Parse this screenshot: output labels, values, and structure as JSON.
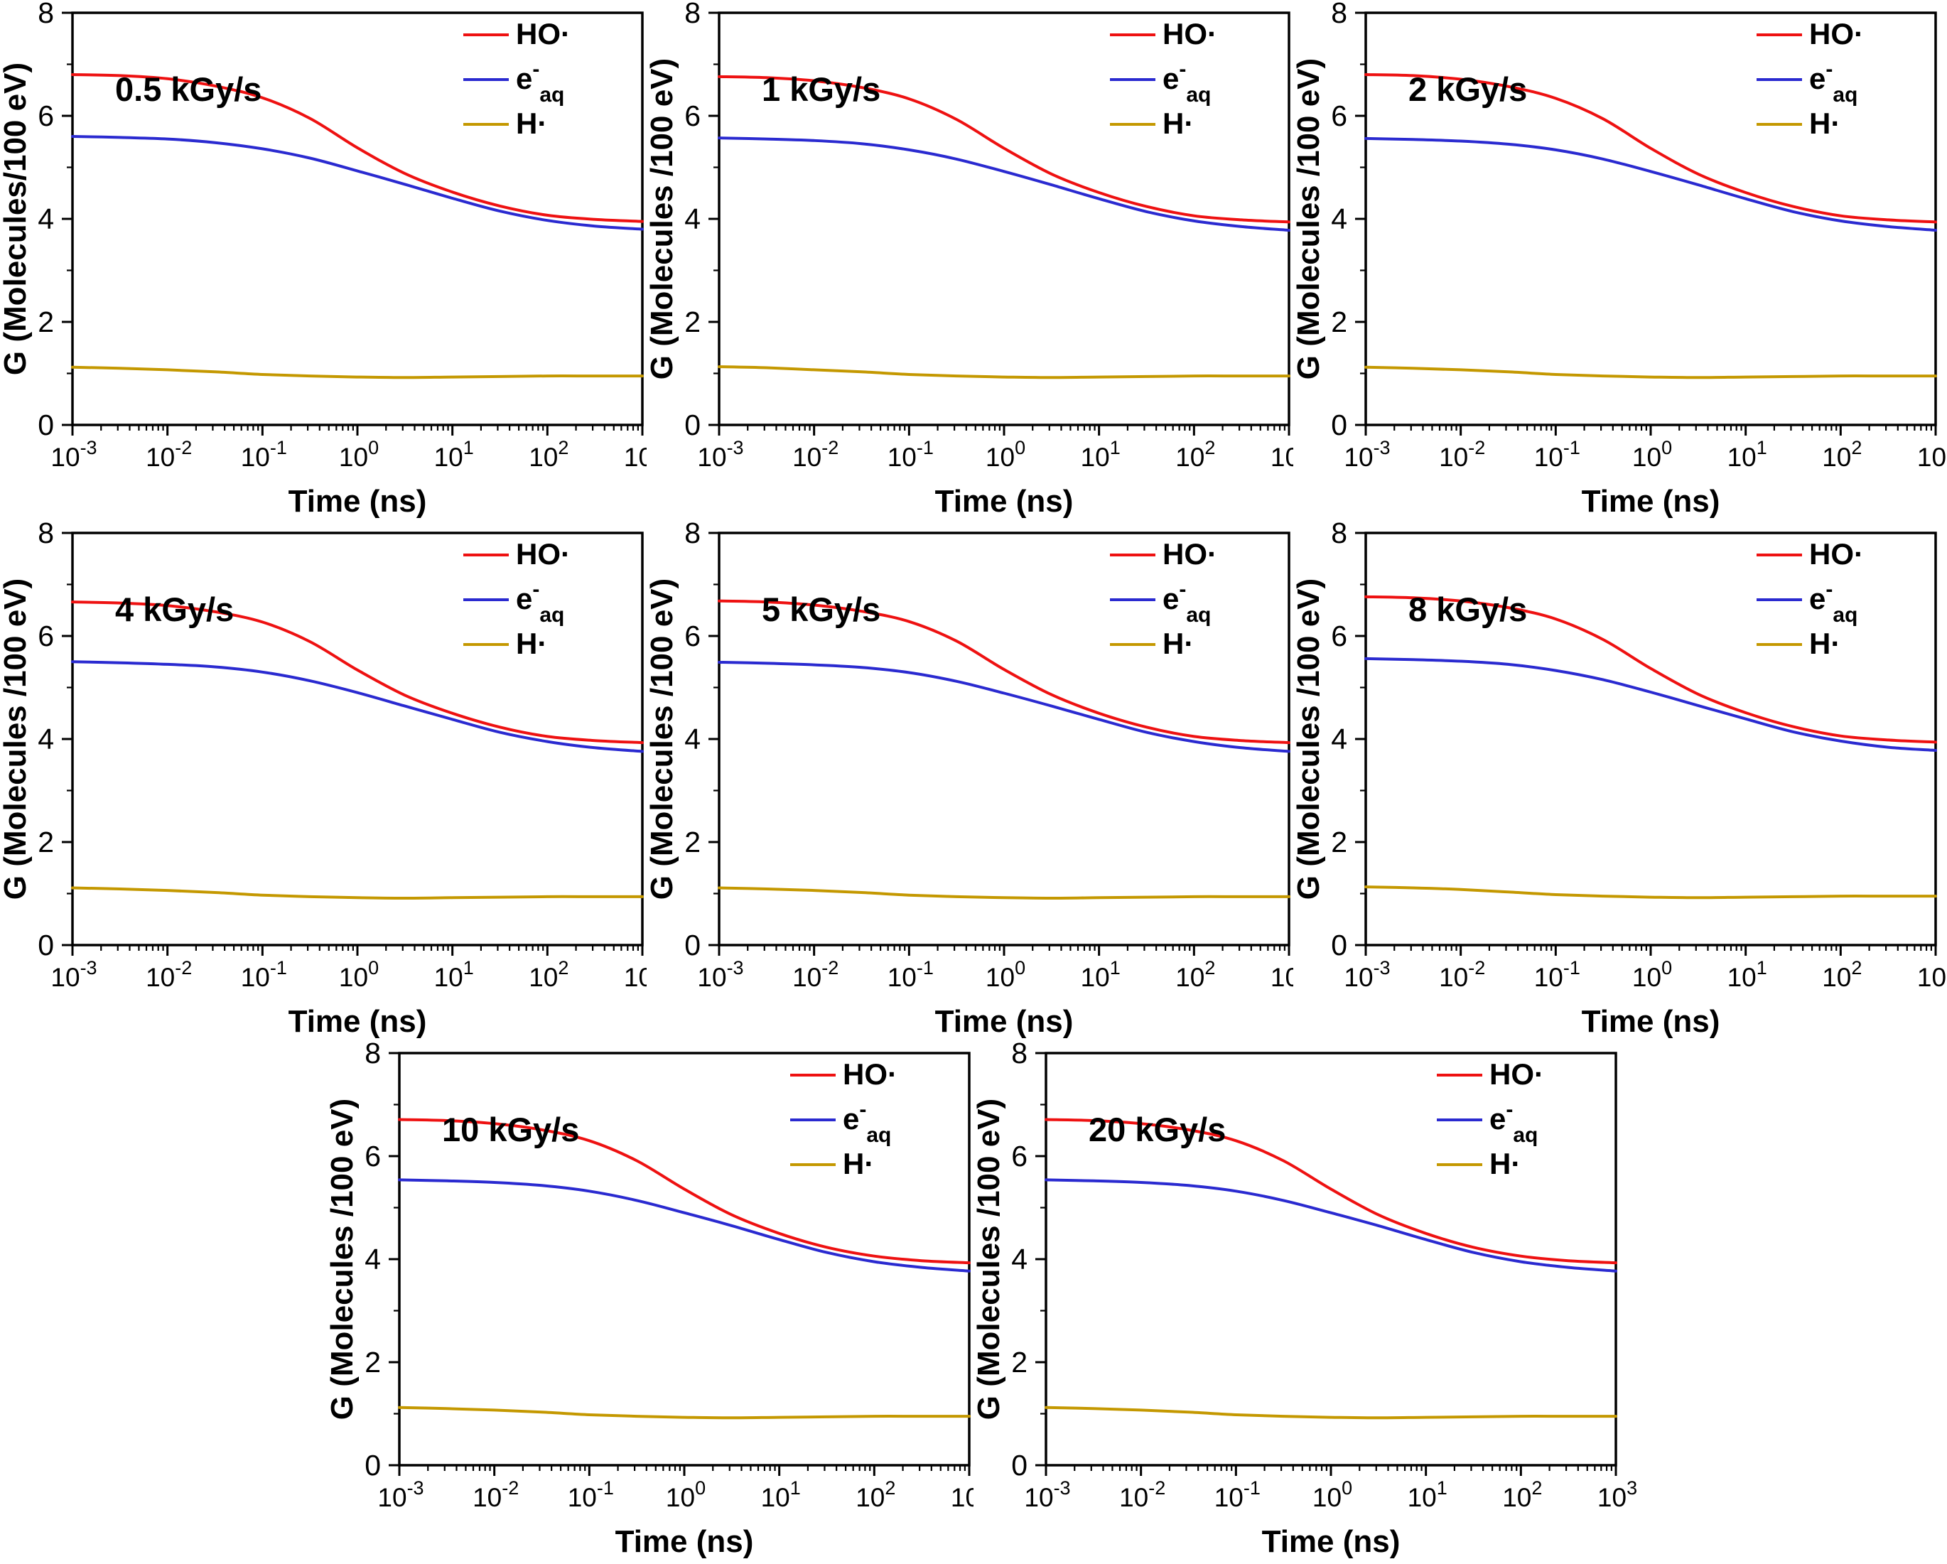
{
  "figure": {
    "background": "#ffffff",
    "rows": [
      [
        0,
        1,
        2
      ],
      [
        3,
        4,
        5
      ],
      [
        6,
        7
      ]
    ]
  },
  "colors": {
    "ho_radical": "#ee1111",
    "e_aq": "#2a2ad0",
    "h_radical": "#c49800",
    "axis": "#000000",
    "text": "#000000"
  },
  "axes": {
    "x_label": "Time (ns)",
    "x_tick_base": "10",
    "x_tick_exponents": [
      -3,
      -2,
      -1,
      0,
      1,
      2,
      3
    ],
    "y_major_ticks": [
      0,
      2,
      4,
      6,
      8
    ],
    "y_minor_ticks": [
      1,
      3,
      5,
      7
    ],
    "xlim_log": [
      -3,
      3
    ],
    "ylim": [
      0,
      8
    ]
  },
  "legend": {
    "items": [
      {
        "key": "HO",
        "label": "HO·",
        "sup": "",
        "sub": "",
        "color": "#ee1111"
      },
      {
        "key": "EAQ",
        "label": "e",
        "sup": "-",
        "sub": "aq",
        "color": "#2a2ad0"
      },
      {
        "key": "H",
        "label": "H·",
        "sup": "",
        "sub": "",
        "color": "#c49800"
      }
    ]
  },
  "chart_data": [
    {
      "type": "line",
      "xscale": "log",
      "title": "0.5 kGy/s",
      "xlabel": "Time (ns)",
      "ylabel": "G (Molecules/100 eV)",
      "xlim": [
        0.001,
        1000
      ],
      "ylim": [
        0,
        8
      ],
      "logx": [
        -3,
        -2.5,
        -2,
        -1.5,
        -1,
        -0.5,
        0,
        0.5,
        1,
        1.5,
        2,
        2.5,
        3
      ],
      "series": [
        {
          "name": "HO·",
          "color": "#ee1111",
          "y": [
            6.8,
            6.78,
            6.72,
            6.58,
            6.35,
            5.95,
            5.38,
            4.88,
            4.52,
            4.25,
            4.07,
            3.99,
            3.95
          ]
        },
        {
          "name": "e-aq",
          "color": "#2a2ad0",
          "y": [
            5.6,
            5.58,
            5.55,
            5.48,
            5.36,
            5.18,
            4.93,
            4.67,
            4.4,
            4.15,
            3.97,
            3.86,
            3.8
          ]
        },
        {
          "name": "H·",
          "color": "#c49800",
          "y": [
            1.12,
            1.1,
            1.07,
            1.03,
            0.98,
            0.95,
            0.93,
            0.92,
            0.93,
            0.94,
            0.95,
            0.95,
            0.95
          ]
        }
      ]
    },
    {
      "type": "line",
      "xscale": "log",
      "title": "1 kGy/s",
      "xlabel": "Time (ns)",
      "ylabel": "G (Molecules /100 eV)",
      "xlim": [
        0.001,
        1000
      ],
      "ylim": [
        0,
        8
      ],
      "logx": [
        -3,
        -2.5,
        -2,
        -1.5,
        -1,
        -0.5,
        0,
        0.5,
        1,
        1.5,
        2,
        2.5,
        3
      ],
      "series": [
        {
          "name": "HO·",
          "color": "#ee1111",
          "y": [
            6.76,
            6.74,
            6.68,
            6.55,
            6.33,
            5.93,
            5.37,
            4.87,
            4.51,
            4.24,
            4.06,
            3.98,
            3.94
          ]
        },
        {
          "name": "e-aq",
          "color": "#2a2ad0",
          "y": [
            5.57,
            5.55,
            5.52,
            5.46,
            5.34,
            5.16,
            4.92,
            4.66,
            4.39,
            4.14,
            3.96,
            3.85,
            3.78
          ]
        },
        {
          "name": "H·",
          "color": "#c49800",
          "y": [
            1.13,
            1.11,
            1.07,
            1.03,
            0.98,
            0.95,
            0.93,
            0.92,
            0.93,
            0.94,
            0.95,
            0.95,
            0.95
          ]
        }
      ]
    },
    {
      "type": "line",
      "xscale": "log",
      "title": "2 kGy/s",
      "xlabel": "Time (ns)",
      "ylabel": "G (Molecules /100 eV)",
      "xlim": [
        0.001,
        1000
      ],
      "ylim": [
        0,
        8
      ],
      "logx": [
        -3,
        -2.5,
        -2,
        -1.5,
        -1,
        -0.5,
        0,
        0.5,
        1,
        1.5,
        2,
        2.5,
        3
      ],
      "series": [
        {
          "name": "HO·",
          "color": "#ee1111",
          "y": [
            6.8,
            6.78,
            6.71,
            6.57,
            6.34,
            5.94,
            5.37,
            4.87,
            4.51,
            4.24,
            4.06,
            3.98,
            3.94
          ]
        },
        {
          "name": "e-aq",
          "color": "#2a2ad0",
          "y": [
            5.56,
            5.54,
            5.51,
            5.45,
            5.34,
            5.16,
            4.92,
            4.66,
            4.39,
            4.14,
            3.96,
            3.85,
            3.78
          ]
        },
        {
          "name": "H·",
          "color": "#c49800",
          "y": [
            1.12,
            1.1,
            1.07,
            1.03,
            0.98,
            0.95,
            0.93,
            0.92,
            0.93,
            0.94,
            0.95,
            0.95,
            0.95
          ]
        }
      ]
    },
    {
      "type": "line",
      "xscale": "log",
      "title": "4 kGy/s",
      "xlabel": "Time (ns)",
      "ylabel": "G (Molecules /100 eV)",
      "xlim": [
        0.001,
        1000
      ],
      "ylim": [
        0,
        8
      ],
      "logx": [
        -3,
        -2.5,
        -2,
        -1.5,
        -1,
        -0.5,
        0,
        0.5,
        1,
        1.5,
        2,
        2.5,
        3
      ],
      "series": [
        {
          "name": "HO·",
          "color": "#ee1111",
          "y": [
            6.66,
            6.64,
            6.59,
            6.47,
            6.27,
            5.89,
            5.34,
            4.85,
            4.5,
            4.23,
            4.05,
            3.97,
            3.93
          ]
        },
        {
          "name": "e-aq",
          "color": "#2a2ad0",
          "y": [
            5.5,
            5.48,
            5.45,
            5.4,
            5.3,
            5.13,
            4.9,
            4.64,
            4.38,
            4.13,
            3.95,
            3.83,
            3.76
          ]
        },
        {
          "name": "H·",
          "color": "#c49800",
          "y": [
            1.11,
            1.09,
            1.06,
            1.02,
            0.97,
            0.94,
            0.92,
            0.91,
            0.92,
            0.93,
            0.94,
            0.94,
            0.94
          ]
        }
      ]
    },
    {
      "type": "line",
      "xscale": "log",
      "title": "5 kGy/s",
      "xlabel": "Time (ns)",
      "ylabel": "G (Molecules /100 eV)",
      "xlim": [
        0.001,
        1000
      ],
      "ylim": [
        0,
        8
      ],
      "logx": [
        -3,
        -2.5,
        -2,
        -1.5,
        -1,
        -0.5,
        0,
        0.5,
        1,
        1.5,
        2,
        2.5,
        3
      ],
      "series": [
        {
          "name": "HO·",
          "color": "#ee1111",
          "y": [
            6.68,
            6.66,
            6.6,
            6.48,
            6.28,
            5.9,
            5.35,
            4.86,
            4.5,
            4.23,
            4.05,
            3.97,
            3.93
          ]
        },
        {
          "name": "e-aq",
          "color": "#2a2ad0",
          "y": [
            5.49,
            5.47,
            5.44,
            5.39,
            5.29,
            5.12,
            4.89,
            4.64,
            4.38,
            4.13,
            3.95,
            3.83,
            3.76
          ]
        },
        {
          "name": "H·",
          "color": "#c49800",
          "y": [
            1.11,
            1.09,
            1.06,
            1.02,
            0.97,
            0.94,
            0.92,
            0.91,
            0.92,
            0.93,
            0.94,
            0.94,
            0.94
          ]
        }
      ]
    },
    {
      "type": "line",
      "xscale": "log",
      "title": "8 kGy/s",
      "xlabel": "Time (ns)",
      "ylabel": "G (Molecules /100 eV)",
      "xlim": [
        0.001,
        1000
      ],
      "ylim": [
        0,
        8
      ],
      "logx": [
        -3,
        -2.5,
        -2,
        -1.5,
        -1,
        -0.5,
        0,
        0.5,
        1,
        1.5,
        2,
        2.5,
        3
      ],
      "series": [
        {
          "name": "HO·",
          "color": "#ee1111",
          "y": [
            6.76,
            6.74,
            6.68,
            6.55,
            6.33,
            5.93,
            5.37,
            4.87,
            4.51,
            4.24,
            4.06,
            3.98,
            3.94
          ]
        },
        {
          "name": "e-aq",
          "color": "#2a2ad0",
          "y": [
            5.56,
            5.54,
            5.51,
            5.45,
            5.33,
            5.15,
            4.91,
            4.65,
            4.39,
            4.14,
            3.96,
            3.84,
            3.78
          ]
        },
        {
          "name": "H·",
          "color": "#c49800",
          "y": [
            1.13,
            1.11,
            1.08,
            1.03,
            0.98,
            0.95,
            0.93,
            0.92,
            0.93,
            0.94,
            0.95,
            0.95,
            0.95
          ]
        }
      ]
    },
    {
      "type": "line",
      "xscale": "log",
      "title": "10 kGy/s",
      "xlabel": "Time (ns)",
      "ylabel": "G (Molecules /100 eV)",
      "xlim": [
        0.001,
        1000
      ],
      "ylim": [
        0,
        8
      ],
      "logx": [
        -3,
        -2.5,
        -2,
        -1.5,
        -1,
        -0.5,
        0,
        0.5,
        1,
        1.5,
        2,
        2.5,
        3
      ],
      "series": [
        {
          "name": "HO·",
          "color": "#ee1111",
          "y": [
            6.71,
            6.69,
            6.63,
            6.51,
            6.3,
            5.91,
            5.36,
            4.86,
            4.5,
            4.23,
            4.06,
            3.97,
            3.93
          ]
        },
        {
          "name": "e-aq",
          "color": "#2a2ad0",
          "y": [
            5.54,
            5.52,
            5.49,
            5.43,
            5.32,
            5.14,
            4.9,
            4.65,
            4.38,
            4.13,
            3.95,
            3.84,
            3.77
          ]
        },
        {
          "name": "H·",
          "color": "#c49800",
          "y": [
            1.12,
            1.1,
            1.07,
            1.03,
            0.98,
            0.95,
            0.93,
            0.92,
            0.93,
            0.94,
            0.95,
            0.95,
            0.95
          ]
        }
      ]
    },
    {
      "type": "line",
      "xscale": "log",
      "title": "20 kGy/s",
      "xlabel": "Time (ns)",
      "ylabel": "G (Molecules /100 eV)",
      "xlim": [
        0.001,
        1000
      ],
      "ylim": [
        0,
        8
      ],
      "logx": [
        -3,
        -2.5,
        -2,
        -1.5,
        -1,
        -0.5,
        0,
        0.5,
        1,
        1.5,
        2,
        2.5,
        3
      ],
      "series": [
        {
          "name": "HO·",
          "color": "#ee1111",
          "y": [
            6.71,
            6.69,
            6.63,
            6.51,
            6.3,
            5.91,
            5.36,
            4.86,
            4.5,
            4.23,
            4.06,
            3.97,
            3.93
          ]
        },
        {
          "name": "e-aq",
          "color": "#2a2ad0",
          "y": [
            5.54,
            5.52,
            5.49,
            5.43,
            5.32,
            5.14,
            4.9,
            4.65,
            4.38,
            4.13,
            3.95,
            3.84,
            3.77
          ]
        },
        {
          "name": "H·",
          "color": "#c49800",
          "y": [
            1.12,
            1.1,
            1.07,
            1.03,
            0.98,
            0.95,
            0.93,
            0.92,
            0.93,
            0.94,
            0.95,
            0.95,
            0.95
          ]
        }
      ]
    }
  ]
}
